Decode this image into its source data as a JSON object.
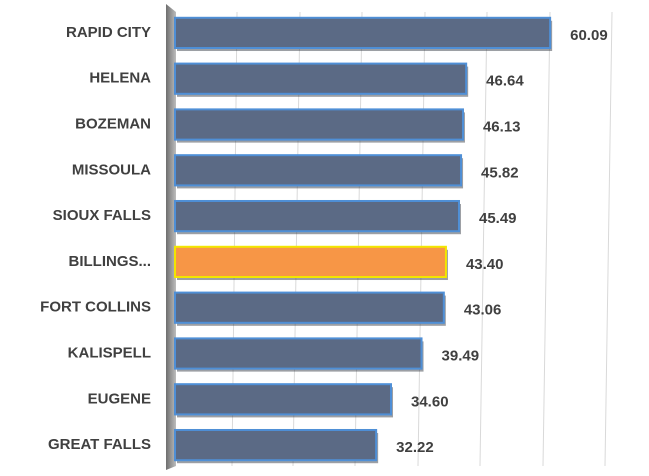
{
  "chart_data": {
    "type": "bar",
    "orientation": "horizontal",
    "categories": [
      "RAPID CITY",
      "HELENA",
      "BOZEMAN",
      "MISSOULA",
      "SIOUX FALLS",
      "BILLINGS...",
      "FORT COLLINS",
      "KALISPELL",
      "EUGENE",
      "GREAT FALLS"
    ],
    "values": [
      60.09,
      46.64,
      46.13,
      45.82,
      45.49,
      43.4,
      43.06,
      39.49,
      34.6,
      32.22
    ],
    "value_labels": [
      "60.09",
      "46.64",
      "46.13",
      "45.82",
      "45.49",
      "43.40",
      "43.06",
      "39.49",
      "34.60",
      "32.22"
    ],
    "colors": [
      "#5b6a85",
      "#5b6a85",
      "#5b6a85",
      "#5b6a85",
      "#5b6a85",
      "#f79646",
      "#5b6a85",
      "#5b6a85",
      "#5b6a85",
      "#5b6a85"
    ],
    "border_colors": [
      "#4f8fd6",
      "#4f8fd6",
      "#4f8fd6",
      "#4f8fd6",
      "#4f8fd6",
      "#f2e600",
      "#4f8fd6",
      "#4f8fd6",
      "#4f8fd6",
      "#4f8fd6"
    ],
    "xlim": [
      0,
      70
    ]
  }
}
